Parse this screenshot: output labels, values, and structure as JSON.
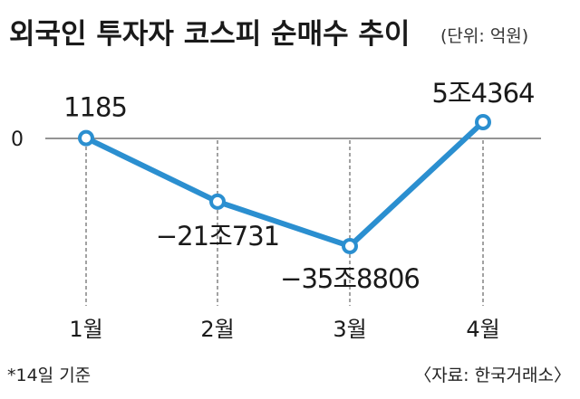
{
  "title": "외국인 투자자 코스피 순매수 추이",
  "unit": "(단위: 억원)",
  "footnote": "*14일 기준",
  "source": "〈자료: 한국거래소〉",
  "chart_data": {
    "type": "line",
    "categories": [
      "1월",
      "2월",
      "3월",
      "4월"
    ],
    "values": [
      1185,
      -210731,
      -358806,
      54364
    ],
    "data_labels": [
      "1185",
      "−21조731",
      "−35조8806",
      "5조4364"
    ],
    "y_ticks": [
      "0"
    ],
    "ylim": [
      -400000,
      120000
    ],
    "baseline": 0,
    "line_color": "#2b8fd0",
    "marker_fill": "#ffffff",
    "grid_color": "#555555",
    "ylabel": "",
    "xlabel": ""
  }
}
